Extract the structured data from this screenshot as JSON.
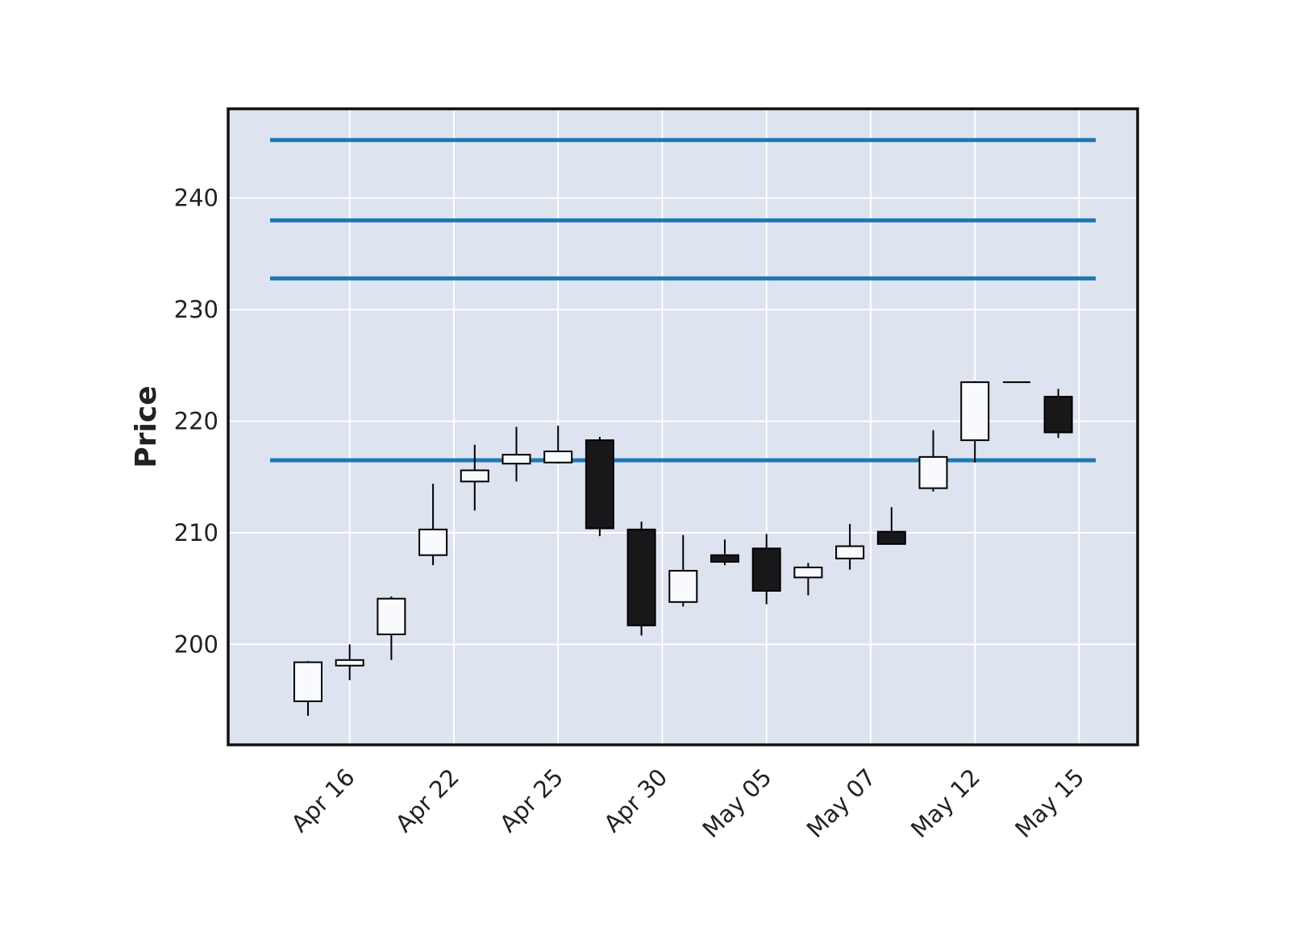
{
  "chart_data": {
    "type": "candlestick",
    "title": "",
    "xlabel": "",
    "ylabel": "Price",
    "ylim": [
      191,
      248
    ],
    "yticks": [
      200,
      210,
      220,
      230,
      240
    ],
    "xtick_labels": [
      "Apr 16",
      "Apr 22",
      "Apr 25",
      "Apr 30",
      "May 05",
      "May 07",
      "May 12",
      "May 15"
    ],
    "xtick_index": [
      1,
      3.5,
      6,
      8.5,
      11,
      13.5,
      16,
      18.5
    ],
    "grid": true,
    "colors": {
      "panel_bg": "#dde3ef",
      "grid": "#ffffff",
      "frame": "#111111",
      "up_body": "#f8fafe",
      "down_body": "#18181b",
      "wick": "#000000",
      "hlines": "#1f77b4"
    },
    "hlines": [
      245.2,
      238.0,
      232.8,
      216.5
    ],
    "candles": [
      {
        "open": 194.9,
        "high": 198.5,
        "low": 193.6,
        "close": 198.4
      },
      {
        "open": 198.1,
        "high": 200.0,
        "low": 196.8,
        "close": 198.6
      },
      {
        "open": 200.9,
        "high": 204.3,
        "low": 198.6,
        "close": 204.1
      },
      {
        "open": 208.0,
        "high": 214.4,
        "low": 207.1,
        "close": 210.3
      },
      {
        "open": 214.6,
        "high": 217.9,
        "low": 212.0,
        "close": 215.6
      },
      {
        "open": 216.2,
        "high": 219.5,
        "low": 214.6,
        "close": 217.0
      },
      {
        "open": 216.3,
        "high": 219.6,
        "low": 216.2,
        "close": 217.3
      },
      {
        "open": 218.3,
        "high": 218.6,
        "low": 209.7,
        "close": 210.4
      },
      {
        "open": 210.3,
        "high": 211.0,
        "low": 200.8,
        "close": 201.7
      },
      {
        "open": 203.8,
        "high": 209.8,
        "low": 203.4,
        "close": 206.6
      },
      {
        "open": 208.0,
        "high": 209.4,
        "low": 207.1,
        "close": 207.4
      },
      {
        "open": 208.6,
        "high": 209.9,
        "low": 203.6,
        "close": 204.8
      },
      {
        "open": 206.0,
        "high": 207.3,
        "low": 204.4,
        "close": 206.9
      },
      {
        "open": 207.7,
        "high": 210.8,
        "low": 206.7,
        "close": 208.8
      },
      {
        "open": 210.1,
        "high": 212.3,
        "low": 209.0,
        "close": 209.0
      },
      {
        "open": 214.0,
        "high": 219.2,
        "low": 213.7,
        "close": 216.8
      },
      {
        "open": 218.3,
        "high": 223.6,
        "low": 216.3,
        "close": 223.5
      },
      {
        "open": 223.5,
        "high": 223.5,
        "low": 223.5,
        "close": 223.5
      },
      {
        "open": 222.2,
        "high": 222.9,
        "low": 218.5,
        "close": 219.0
      }
    ]
  }
}
